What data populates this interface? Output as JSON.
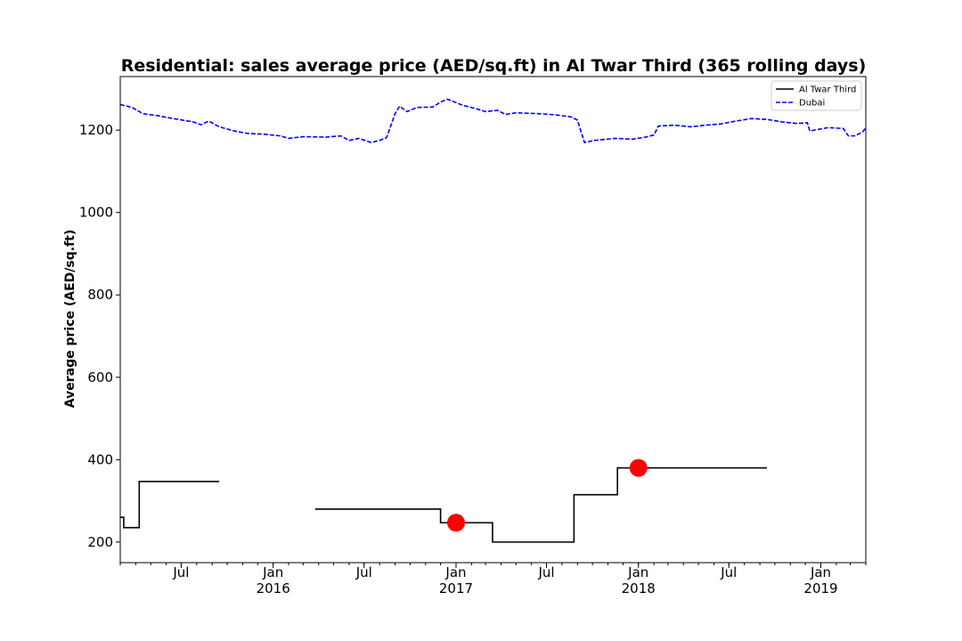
{
  "chart_data": {
    "type": "line",
    "title": "Residential: sales average price (AED/sq.ft) in Al Twar Third (365 rolling days)",
    "xlabel": "",
    "ylabel": "Average price (AED/sq.ft)",
    "ylim": [
      150,
      1330
    ],
    "xlim": [
      "2015-03-01",
      "2019-04-01"
    ],
    "yticks": [
      200,
      400,
      600,
      800,
      1000,
      1200
    ],
    "xticks": [
      {
        "date": "2015-07-01",
        "label": "Jul",
        "year": ""
      },
      {
        "date": "2016-01-01",
        "label": "Jan",
        "year": "2016"
      },
      {
        "date": "2016-07-01",
        "label": "Jul",
        "year": ""
      },
      {
        "date": "2017-01-01",
        "label": "Jan",
        "year": "2017"
      },
      {
        "date": "2017-07-01",
        "label": "Jul",
        "year": ""
      },
      {
        "date": "2018-01-01",
        "label": "Jan",
        "year": "2018"
      },
      {
        "date": "2018-07-01",
        "label": "Jul",
        "year": ""
      },
      {
        "date": "2019-01-01",
        "label": "Jan",
        "year": "2019"
      }
    ],
    "legend": {
      "position": "top-right",
      "entries": [
        "Al Twar Third",
        "Dubai"
      ]
    },
    "series": [
      {
        "name": "Al Twar Third",
        "color": "#000000",
        "style": "solid-step",
        "segments": [
          [
            [
              "2015-03-01",
              260
            ],
            [
              "2015-03-08",
              260
            ],
            [
              "2015-03-08",
              235
            ],
            [
              "2015-04-08",
              235
            ],
            [
              "2015-04-08",
              347
            ],
            [
              "2015-09-15",
              347
            ]
          ],
          [
            [
              "2016-03-25",
              280
            ],
            [
              "2016-12-01",
              280
            ],
            [
              "2016-12-01",
              247
            ],
            [
              "2017-03-15",
              247
            ],
            [
              "2017-03-15",
              200
            ],
            [
              "2017-08-25",
              200
            ],
            [
              "2017-08-25",
              315
            ],
            [
              "2017-11-20",
              315
            ],
            [
              "2017-11-20",
              380
            ],
            [
              "2018-09-15",
              380
            ]
          ]
        ]
      },
      {
        "name": "Dubai",
        "color": "#0000ff",
        "style": "dashed",
        "points": [
          [
            "2015-03-01",
            1262
          ],
          [
            "2015-03-25",
            1255
          ],
          [
            "2015-04-15",
            1240
          ],
          [
            "2015-05-15",
            1235
          ],
          [
            "2015-06-15",
            1228
          ],
          [
            "2015-07-25",
            1220
          ],
          [
            "2015-08-10",
            1213
          ],
          [
            "2015-08-25",
            1222
          ],
          [
            "2015-09-15",
            1208
          ],
          [
            "2015-10-15",
            1198
          ],
          [
            "2015-11-10",
            1192
          ],
          [
            "2015-12-15",
            1190
          ],
          [
            "2016-01-15",
            1186
          ],
          [
            "2016-02-01",
            1180
          ],
          [
            "2016-03-01",
            1184
          ],
          [
            "2016-04-15",
            1183
          ],
          [
            "2016-05-15",
            1186
          ],
          [
            "2016-06-01",
            1175
          ],
          [
            "2016-06-20",
            1180
          ],
          [
            "2016-07-15",
            1170
          ],
          [
            "2016-08-01",
            1175
          ],
          [
            "2016-08-15",
            1182
          ],
          [
            "2016-09-01",
            1240
          ],
          [
            "2016-09-10",
            1258
          ],
          [
            "2016-09-25",
            1245
          ],
          [
            "2016-10-15",
            1255
          ],
          [
            "2016-11-15",
            1256
          ],
          [
            "2016-12-01",
            1268
          ],
          [
            "2016-12-15",
            1275
          ],
          [
            "2017-01-15",
            1260
          ],
          [
            "2017-02-10",
            1252
          ],
          [
            "2017-03-01",
            1245
          ],
          [
            "2017-03-25",
            1248
          ],
          [
            "2017-04-10",
            1238
          ],
          [
            "2017-05-01",
            1242
          ],
          [
            "2017-06-15",
            1240
          ],
          [
            "2017-07-20",
            1237
          ],
          [
            "2017-08-20",
            1232
          ],
          [
            "2017-09-01",
            1224
          ],
          [
            "2017-09-15",
            1170
          ],
          [
            "2017-10-05",
            1175
          ],
          [
            "2017-11-15",
            1180
          ],
          [
            "2017-12-20",
            1178
          ],
          [
            "2018-01-15",
            1183
          ],
          [
            "2018-02-01",
            1188
          ],
          [
            "2018-02-10",
            1210
          ],
          [
            "2018-03-15",
            1212
          ],
          [
            "2018-04-15",
            1208
          ],
          [
            "2018-05-15",
            1212
          ],
          [
            "2018-06-15",
            1215
          ],
          [
            "2018-07-15",
            1222
          ],
          [
            "2018-08-15",
            1228
          ],
          [
            "2018-09-15",
            1226
          ],
          [
            "2018-10-15",
            1220
          ],
          [
            "2018-11-15",
            1216
          ],
          [
            "2018-12-05",
            1218
          ],
          [
            "2018-12-10",
            1198
          ],
          [
            "2019-01-15",
            1206
          ],
          [
            "2019-02-15",
            1204
          ],
          [
            "2019-02-25",
            1186
          ],
          [
            "2019-03-10",
            1186
          ],
          [
            "2019-03-25",
            1195
          ],
          [
            "2019-04-01",
            1205
          ],
          [
            "2019-04-15",
            1210
          ],
          [
            "2019-05-01",
            1218
          ]
        ]
      },
      {
        "name": "highlight markers",
        "color": "#ff0000",
        "style": "marker",
        "points": [
          [
            "2017-01-01",
            247
          ],
          [
            "2018-01-01",
            380
          ]
        ]
      }
    ]
  }
}
